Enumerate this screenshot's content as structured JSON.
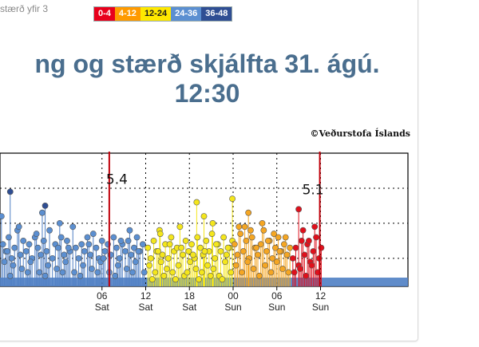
{
  "header": {
    "caption": "stærð yfir 3",
    "legend": [
      {
        "label": "0-4",
        "bg": "#e8001c",
        "fg": "#ffffff"
      },
      {
        "label": "4-12",
        "bg": "#ff9a00",
        "fg": "#ffffff"
      },
      {
        "label": "12-24",
        "bg": "#ffe800",
        "fg": "#1a1a1a"
      },
      {
        "label": "24-36",
        "bg": "#5b8fd1",
        "fg": "#ffffff"
      },
      {
        "label": "36-48",
        "bg": "#2f4e93",
        "fg": "#ffffff"
      }
    ]
  },
  "title": {
    "line1": "ng og stærð skjálfta   31. ágú.",
    "line2": "12:30"
  },
  "watermark": "©Veðurstofa Íslands",
  "colors": {
    "blue": "#5b8fd1",
    "yellow": "#f4e61c",
    "orange": "#f5a623",
    "red": "#e0101c",
    "stem_blue": "#4f7fc4",
    "marker_line": "#c0000a"
  },
  "chart_data": {
    "type": "scatter",
    "title": "ng og stærð skjálfta 31. ágú. 12:30",
    "xlabel": "",
    "ylabel": "",
    "xlim": [
      -8,
      48
    ],
    "ylim": [
      2.2,
      6.0
    ],
    "x_ticks": [
      {
        "hour": 6,
        "top": "06",
        "bottom": "Sat"
      },
      {
        "hour": 12,
        "top": "12",
        "bottom": "Sat"
      },
      {
        "hour": 18,
        "top": "18",
        "bottom": "Sat"
      },
      {
        "hour": 24,
        "top": "00",
        "bottom": "Sun"
      },
      {
        "hour": 30,
        "top": "06",
        "bottom": "Sun"
      },
      {
        "hour": 36,
        "top": "12",
        "bottom": "Sun"
      }
    ],
    "gridlines_y": [
      3,
      4,
      5
    ],
    "series": [
      {
        "name": "24-36",
        "color": "#5b8fd1",
        "x": [
          -7.6,
          -7.2,
          -6.8,
          -6.4,
          -6.0,
          -5.6,
          -5.2,
          -4.8,
          -4.4,
          -4.0,
          -3.6,
          -3.2,
          -2.8,
          -2.4,
          -2.0,
          -1.6,
          -1.2,
          -0.8,
          -0.4,
          0.0,
          0.4,
          0.8,
          1.2,
          1.6,
          2.0,
          2.4,
          2.8,
          3.2,
          3.6,
          4.0,
          4.4,
          4.8,
          5.2,
          5.6,
          6.0,
          6.4,
          6.8,
          7.2,
          7.6,
          8.0,
          8.4,
          8.8,
          9.2,
          9.6,
          10.0,
          10.4,
          10.8,
          11.2,
          11.6,
          -7.4,
          -6.2,
          -5.0,
          -3.8,
          -2.6,
          -1.4,
          -0.2,
          1.0,
          2.2,
          3.4,
          4.6,
          5.8,
          7.0,
          8.2,
          9.4,
          10.6,
          11.8,
          -6.6,
          -4.2,
          -1.8,
          0.6,
          3.0,
          5.4,
          7.8,
          10.2,
          -7.0,
          -3.0,
          1.4,
          4.2,
          8.6,
          11.0,
          -5.4,
          0.2,
          6.2,
          9.8,
          -7.8,
          -2.2
        ],
        "y": [
          3.4,
          3.2,
          3.6,
          3.0,
          3.3,
          3.8,
          3.1,
          3.5,
          3.2,
          3.4,
          3.0,
          3.6,
          3.3,
          3.1,
          3.5,
          3.2,
          3.8,
          3.0,
          3.4,
          3.3,
          3.6,
          3.1,
          3.5,
          3.2,
          3.9,
          3.3,
          3.0,
          3.4,
          3.2,
          3.6,
          3.1,
          3.7,
          3.3,
          3.0,
          3.5,
          3.2,
          3.4,
          3.1,
          3.6,
          3.3,
          3.0,
          3.4,
          3.2,
          3.5,
          3.1,
          3.3,
          3.6,
          3.2,
          3.4,
          2.9,
          2.8,
          2.7,
          2.9,
          2.6,
          2.8,
          2.7,
          2.9,
          2.6,
          2.8,
          2.7,
          2.9,
          2.6,
          2.8,
          2.7,
          2.9,
          2.6,
          2.5,
          2.6,
          2.5,
          2.6,
          2.5,
          2.6,
          2.5,
          2.6,
          3.2,
          3.7,
          3.3,
          3.4,
          3.5,
          3.2,
          3.9,
          4.0,
          3.0,
          3.8,
          4.2,
          4.3
        ]
      },
      {
        "name": "36-48",
        "color": "#2f4e93",
        "x": [
          -6.6,
          -1.8
        ],
        "y": [
          4.9,
          4.5
        ]
      },
      {
        "name": "12-24",
        "color": "#f4e61c",
        "x": [
          12.3,
          12.7,
          13.1,
          13.5,
          13.9,
          14.3,
          14.7,
          15.1,
          15.5,
          15.9,
          16.3,
          16.7,
          17.1,
          17.5,
          17.9,
          18.3,
          18.7,
          19.1,
          19.5,
          19.9,
          20.3,
          20.7,
          21.1,
          21.5,
          21.9,
          22.3,
          22.7,
          23.1,
          23.5,
          23.9,
          12.5,
          13.3,
          14.1,
          14.9,
          15.7,
          16.5,
          17.3,
          18.1,
          18.9,
          19.7,
          20.5,
          21.3,
          22.1,
          22.9,
          23.7,
          12.9,
          14.5,
          16.1,
          17.7,
          19.3,
          20.9,
          22.5,
          13.7,
          15.3,
          16.9,
          18.5,
          20.1,
          21.7,
          23.3,
          19.0,
          20.0,
          14.0,
          21.2,
          23.9
        ],
        "y": [
          3.3,
          3.0,
          3.5,
          3.2,
          3.8,
          3.1,
          3.4,
          3.0,
          3.6,
          3.2,
          3.3,
          3.9,
          3.1,
          3.5,
          3.2,
          3.4,
          3.0,
          3.6,
          3.3,
          3.1,
          3.5,
          3.2,
          3.7,
          3.0,
          3.4,
          3.2,
          3.6,
          3.1,
          3.3,
          3.5,
          2.8,
          2.6,
          2.9,
          2.7,
          2.6,
          2.8,
          2.5,
          2.9,
          2.7,
          2.6,
          2.8,
          2.7,
          2.5,
          2.9,
          2.6,
          2.4,
          2.5,
          2.4,
          2.6,
          2.4,
          2.5,
          2.4,
          3.2,
          3.4,
          3.3,
          3.1,
          3.2,
          3.4,
          3.3,
          4.6,
          4.2,
          3.7,
          4.0,
          4.7
        ]
      },
      {
        "name": "4-12",
        "color": "#f5a623",
        "x": [
          24.2,
          24.6,
          25.0,
          25.4,
          25.8,
          26.2,
          26.6,
          27.0,
          27.4,
          27.8,
          28.2,
          28.6,
          29.0,
          29.4,
          29.8,
          30.2,
          30.6,
          31.0,
          31.4,
          31.8,
          24.4,
          25.2,
          26.0,
          26.8,
          27.6,
          28.4,
          29.2,
          30.0,
          30.8,
          31.6,
          24.8,
          26.4,
          28.0,
          29.6,
          31.2,
          25.6,
          27.2,
          28.8,
          30.4,
          26.1
        ],
        "y": [
          3.4,
          3.1,
          3.7,
          3.2,
          3.5,
          3.0,
          3.6,
          3.3,
          3.1,
          3.4,
          3.8,
          3.2,
          3.5,
          3.0,
          3.3,
          3.6,
          3.2,
          3.4,
          3.1,
          3.3,
          2.8,
          2.6,
          2.9,
          2.7,
          2.5,
          2.8,
          2.6,
          2.9,
          2.7,
          2.6,
          3.9,
          3.8,
          4.0,
          3.7,
          3.6,
          3.9,
          3.3,
          3.5,
          3.2,
          4.3
        ]
      },
      {
        "name": "0-4",
        "color": "#e0101c",
        "x": [
          32.2,
          32.6,
          33.0,
          33.4,
          33.8,
          34.2,
          34.6,
          35.0,
          35.4,
          35.8,
          36.1,
          32.4,
          33.2,
          34.0,
          34.8,
          35.6,
          33.6,
          34.4,
          35.2,
          33.0
        ],
        "y": [
          3.0,
          3.3,
          2.8,
          3.5,
          3.1,
          3.4,
          2.9,
          3.2,
          3.6,
          3.0,
          3.3,
          2.6,
          2.7,
          2.5,
          2.8,
          2.6,
          3.8,
          3.5,
          3.9,
          4.4
        ]
      }
    ],
    "annotations": [
      {
        "label": "5.4",
        "x": 7.0,
        "y": 5.4
      },
      {
        "label": "5.1",
        "x": 35.9,
        "y": 5.1
      }
    ]
  }
}
